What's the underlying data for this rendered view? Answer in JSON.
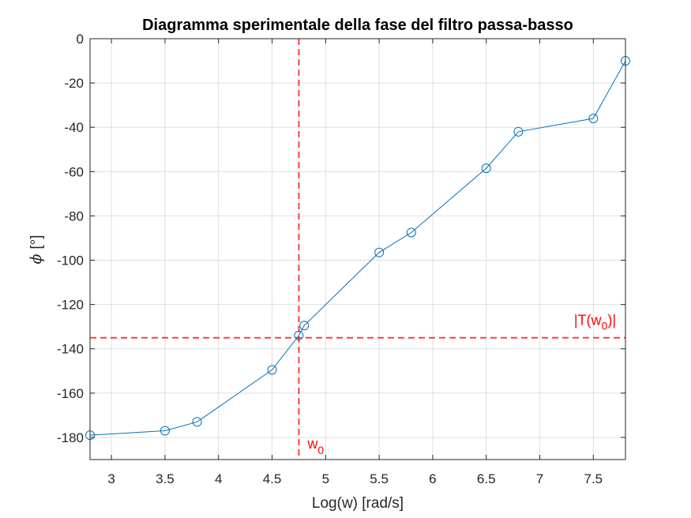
{
  "chart_data": {
    "type": "line",
    "title": "Diagramma sperimentale della fase del filtro passa-basso",
    "xlabel": "Log(w) [rad/s]",
    "ylabel_symbol": "ϕ",
    "ylabel_unit": "[°]",
    "xlim": [
      2.8,
      7.8
    ],
    "ylim": [
      -190,
      0
    ],
    "xticks": [
      3,
      3.5,
      4,
      4.5,
      5,
      5.5,
      6,
      6.5,
      7,
      7.5
    ],
    "xtick_labels": [
      "3",
      "3.5",
      "4",
      "4.5",
      "5",
      "5.5",
      "6",
      "6.5",
      "7",
      "7.5"
    ],
    "yticks": [
      0,
      -20,
      -40,
      -60,
      -80,
      -100,
      -120,
      -140,
      -160,
      -180
    ],
    "ytick_labels": [
      "0",
      "-20",
      "-40",
      "-60",
      "-80",
      "-100",
      "-120",
      "-140",
      "-160",
      "-180"
    ],
    "grid": true,
    "series": [
      {
        "color": "#0072BD",
        "marker": "circle",
        "x": [
          2.8,
          3.5,
          3.8,
          4.5,
          4.75,
          4.8,
          5.5,
          5.8,
          6.5,
          6.8,
          7.5,
          7.8
        ],
        "y": [
          -179,
          -177,
          -173,
          -149.5,
          -134,
          -129.5,
          -96.5,
          -87.5,
          -58.5,
          -42,
          -36,
          -10
        ]
      }
    ],
    "reference_lines": [
      {
        "orientation": "vertical",
        "value": 4.75,
        "label_main": "w",
        "label_sub": "0",
        "color": "#FF0000",
        "style": "dashed"
      },
      {
        "orientation": "horizontal",
        "value": -135,
        "label_prefix": "|T(w",
        "label_sub": "0",
        "label_suffix": ")|",
        "color": "#FF0000",
        "style": "dashed"
      }
    ]
  }
}
